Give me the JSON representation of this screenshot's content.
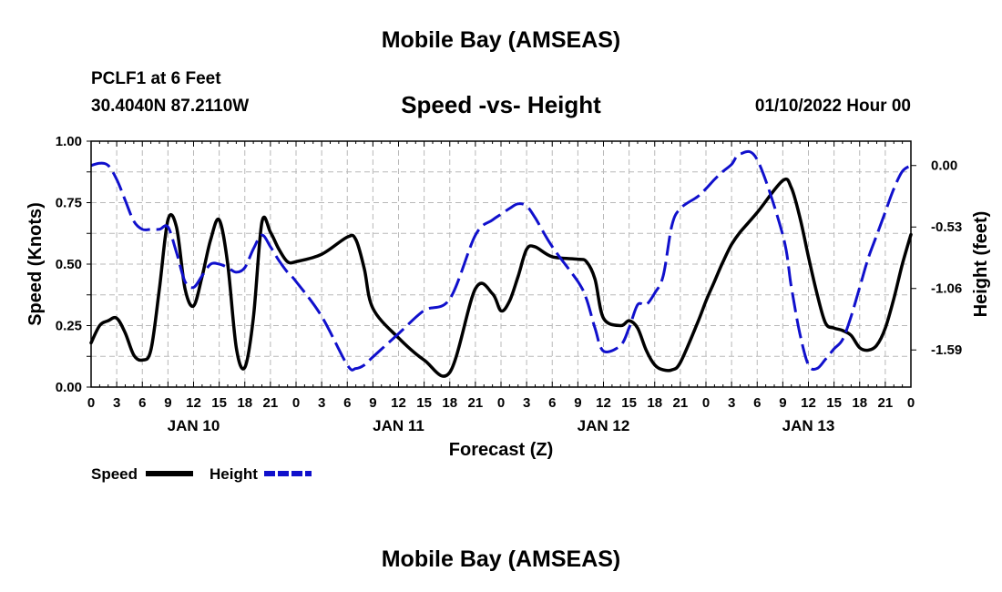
{
  "page": {
    "main_title": "Mobile Bay (AMSEAS)",
    "station": "PCLF1 at 6 Feet",
    "coords": "30.4040N  87.2110W",
    "subtitle": "Speed -vs- Height",
    "run_time": "01/10/2022 Hour 00",
    "bottom_title": "Mobile Bay (AMSEAS)"
  },
  "chart_data": {
    "type": "line",
    "title": "Speed -vs- Height",
    "xlabel": "Forecast (Z)",
    "ylabel": "Speed (Knots)",
    "y2label": "Height (feet)",
    "x_range": [
      0,
      96
    ],
    "ylim": [
      0,
      1
    ],
    "y2lim": [
      -1.91,
      0.21
    ],
    "y_ticks": [
      "0.00",
      "0.25",
      "0.50",
      "0.75",
      "1.00"
    ],
    "y2_ticks": [
      "0.00",
      "-0.53",
      "-1.06",
      "-1.59"
    ],
    "x_tick_labels": [
      "0",
      "3",
      "6",
      "9",
      "12",
      "15",
      "18",
      "21",
      "0",
      "3",
      "6",
      "9",
      "12",
      "15",
      "18",
      "21",
      "0",
      "3",
      "6",
      "9",
      "12",
      "15",
      "18",
      "21",
      "0",
      "3",
      "6",
      "9",
      "12",
      "15",
      "18",
      "21",
      "0"
    ],
    "day_labels": [
      "JAN 10",
      "JAN 11",
      "JAN 12",
      "JAN 13"
    ],
    "grid": true,
    "legend": [
      {
        "name": "Speed",
        "color": "#000000",
        "style": "solid"
      },
      {
        "name": "Height",
        "color": "#1010cc",
        "style": "dashed"
      }
    ],
    "series": [
      {
        "name": "Speed",
        "axis": "left",
        "color": "#000000",
        "x": [
          0,
          1,
          2,
          3,
          4,
          5,
          6,
          7,
          8,
          9,
          10,
          11,
          12,
          13,
          14,
          15,
          16,
          17,
          18,
          19,
          20,
          21,
          22,
          23,
          24,
          27,
          30,
          31,
          32,
          33,
          36,
          39,
          42,
          45,
          47,
          48,
          49,
          50,
          51,
          52,
          54,
          57,
          58,
          59,
          60,
          62,
          63,
          64,
          65,
          66,
          67,
          68,
          69,
          71,
          72,
          73,
          74,
          75,
          76,
          78,
          81,
          82,
          83,
          84,
          85,
          86,
          87,
          88,
          89,
          90,
          91,
          92,
          93,
          94,
          95,
          96
        ],
        "values": [
          0.18,
          0.25,
          0.27,
          0.28,
          0.22,
          0.13,
          0.11,
          0.15,
          0.4,
          0.68,
          0.65,
          0.4,
          0.33,
          0.45,
          0.6,
          0.68,
          0.5,
          0.16,
          0.08,
          0.28,
          0.67,
          0.63,
          0.56,
          0.51,
          0.51,
          0.54,
          0.61,
          0.6,
          0.48,
          0.32,
          0.2,
          0.11,
          0.06,
          0.4,
          0.38,
          0.31,
          0.35,
          0.45,
          0.56,
          0.57,
          0.53,
          0.52,
          0.51,
          0.44,
          0.28,
          0.25,
          0.27,
          0.24,
          0.15,
          0.09,
          0.07,
          0.07,
          0.1,
          0.26,
          0.35,
          0.43,
          0.51,
          0.58,
          0.63,
          0.71,
          0.84,
          0.81,
          0.69,
          0.53,
          0.38,
          0.26,
          0.24,
          0.23,
          0.21,
          0.16,
          0.15,
          0.17,
          0.24,
          0.36,
          0.5,
          0.62
        ]
      },
      {
        "name": "Height",
        "axis": "right",
        "color": "#1010cc",
        "x": [
          0,
          1,
          2,
          3,
          4,
          5,
          6,
          7,
          8,
          9,
          10,
          11,
          12,
          13,
          14,
          15,
          16,
          17,
          18,
          19,
          20,
          21,
          22,
          23,
          24,
          27,
          30,
          31,
          32,
          33,
          36,
          39,
          42,
          45,
          47,
          48,
          49,
          50,
          51,
          52,
          54,
          57,
          58,
          59,
          60,
          62,
          63,
          64,
          65,
          66,
          67,
          68,
          69,
          71,
          72,
          73,
          74,
          75,
          76,
          78,
          81,
          82,
          83,
          84,
          85,
          86,
          87,
          88,
          89,
          90,
          91,
          92,
          93,
          94,
          95,
          96
        ],
        "values": [
          0.0,
          0.02,
          0.0,
          -0.12,
          -0.3,
          -0.48,
          -0.55,
          -0.55,
          -0.55,
          -0.53,
          -0.75,
          -1.0,
          -1.05,
          -0.95,
          -0.85,
          -0.85,
          -0.88,
          -0.92,
          -0.88,
          -0.72,
          -0.6,
          -0.7,
          -0.82,
          -0.92,
          -1.0,
          -1.3,
          -1.72,
          -1.75,
          -1.72,
          -1.65,
          -1.45,
          -1.25,
          -1.15,
          -0.6,
          -0.47,
          -0.42,
          -0.37,
          -0.33,
          -0.35,
          -0.45,
          -0.7,
          -1.0,
          -1.15,
          -1.4,
          -1.6,
          -1.55,
          -1.4,
          -1.2,
          -1.2,
          -1.1,
          -0.95,
          -0.52,
          -0.37,
          -0.27,
          -0.2,
          -0.12,
          -0.05,
          0.01,
          0.1,
          0.05,
          -0.6,
          -1.05,
          -1.45,
          -1.72,
          -1.75,
          -1.67,
          -1.58,
          -1.5,
          -1.3,
          -1.05,
          -0.8,
          -0.6,
          -0.4,
          -0.2,
          -0.05,
          0.0
        ]
      }
    ]
  }
}
